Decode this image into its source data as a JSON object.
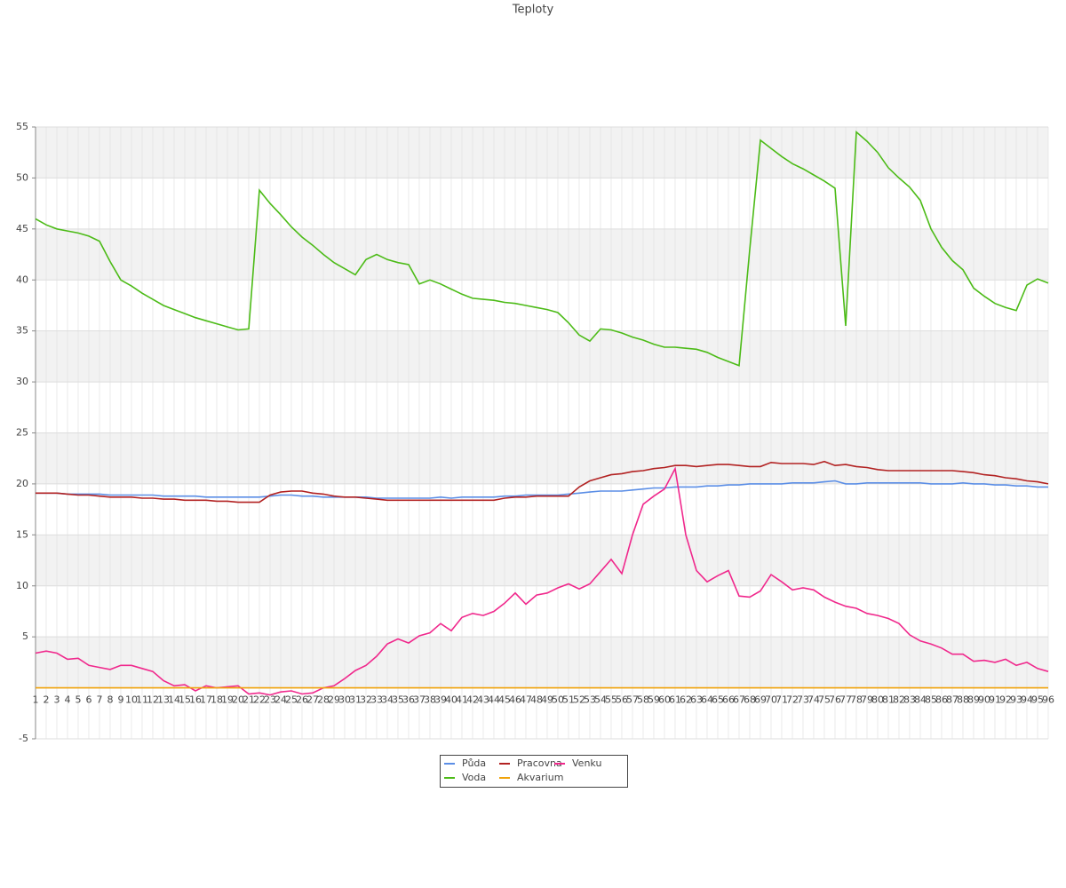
{
  "chart_data": {
    "type": "line",
    "title": "Teploty",
    "categories": [
      1,
      2,
      3,
      4,
      5,
      6,
      7,
      8,
      9,
      10,
      11,
      12,
      13,
      14,
      15,
      16,
      17,
      18,
      19,
      20,
      21,
      22,
      23,
      24,
      25,
      26,
      27,
      28,
      29,
      30,
      31,
      32,
      33,
      34,
      35,
      36,
      37,
      38,
      39,
      40,
      41,
      42,
      43,
      44,
      45,
      46,
      47,
      48,
      49,
      50,
      51,
      52,
      53,
      54,
      55,
      56,
      57,
      58,
      59,
      60,
      61,
      62,
      63,
      64,
      65,
      66,
      67,
      68,
      69,
      70,
      71,
      72,
      73,
      74,
      75,
      76,
      77,
      78,
      79,
      80,
      81,
      82,
      83,
      84,
      85,
      86,
      87,
      88,
      89,
      90,
      91,
      92,
      93,
      94,
      95,
      96
    ],
    "ylim": [
      -5,
      55
    ],
    "yticks": [
      -5,
      5,
      10,
      15,
      20,
      25,
      30,
      35,
      40,
      45,
      50,
      55
    ],
    "grid": true,
    "series": [
      {
        "name": "Půda",
        "color": "#5b8ee6",
        "values": [
          19.1,
          19.1,
          19.1,
          19.0,
          19.0,
          19.0,
          19.0,
          18.9,
          18.9,
          18.9,
          18.9,
          18.9,
          18.8,
          18.8,
          18.8,
          18.8,
          18.7,
          18.7,
          18.7,
          18.7,
          18.7,
          18.7,
          18.8,
          18.9,
          18.9,
          18.8,
          18.8,
          18.7,
          18.7,
          18.7,
          18.7,
          18.7,
          18.6,
          18.6,
          18.6,
          18.6,
          18.6,
          18.6,
          18.7,
          18.6,
          18.7,
          18.7,
          18.7,
          18.7,
          18.8,
          18.8,
          18.9,
          18.9,
          18.9,
          18.9,
          19.0,
          19.1,
          19.2,
          19.3,
          19.3,
          19.3,
          19.4,
          19.5,
          19.6,
          19.6,
          19.7,
          19.7,
          19.7,
          19.8,
          19.8,
          19.9,
          19.9,
          20.0,
          20.0,
          20.0,
          20.0,
          20.1,
          20.1,
          20.1,
          20.2,
          20.3,
          20.0,
          20.0,
          20.1,
          20.1,
          20.1,
          20.1,
          20.1,
          20.1,
          20.0,
          20.0,
          20.0,
          20.1,
          20.0,
          20.0,
          19.9,
          19.9,
          19.8,
          19.8,
          19.7,
          19.7
        ]
      },
      {
        "name": "Voda",
        "color": "#4cbb17",
        "values": [
          46,
          45.4,
          45,
          44.8,
          44.6,
          44.3,
          43.8,
          41.8,
          40,
          39.4,
          38.7,
          38.1,
          37.5,
          37.1,
          36.7,
          36.3,
          36,
          35.7,
          35.4,
          35.1,
          35.2,
          48.8,
          47.5,
          46.4,
          45.2,
          44.2,
          43.4,
          42.5,
          41.7,
          41.1,
          40.5,
          42,
          42.5,
          42,
          41.7,
          41.5,
          39.6,
          40,
          39.6,
          39.1,
          38.6,
          38.2,
          38.1,
          38,
          37.8,
          37.7,
          37.5,
          37.3,
          37.1,
          36.8,
          35.8,
          34.6,
          34,
          35.2,
          35.1,
          34.8,
          34.4,
          34.1,
          33.7,
          33.4,
          33.4,
          33.3,
          33.2,
          32.9,
          32.4,
          32,
          31.6,
          43,
          53.7,
          52.9,
          52.1,
          51.4,
          50.9,
          50.3,
          49.7,
          49,
          35.5,
          54.5,
          53.6,
          52.5,
          51,
          50,
          49.1,
          47.8,
          45,
          43.2,
          41.9,
          41,
          39.2,
          38.4,
          37.7,
          37.3,
          37,
          39.5,
          40.1,
          39.7
        ]
      },
      {
        "name": "Pracovna",
        "color": "#b22222",
        "values": [
          19.1,
          19.1,
          19.1,
          19.0,
          18.9,
          18.9,
          18.8,
          18.7,
          18.7,
          18.7,
          18.6,
          18.6,
          18.5,
          18.5,
          18.4,
          18.4,
          18.4,
          18.3,
          18.3,
          18.2,
          18.2,
          18.2,
          18.9,
          19.2,
          19.3,
          19.3,
          19.1,
          19.0,
          18.8,
          18.7,
          18.7,
          18.6,
          18.5,
          18.4,
          18.4,
          18.4,
          18.4,
          18.4,
          18.4,
          18.4,
          18.4,
          18.4,
          18.4,
          18.4,
          18.6,
          18.7,
          18.7,
          18.8,
          18.8,
          18.8,
          18.8,
          19.7,
          20.3,
          20.6,
          20.9,
          21.0,
          21.2,
          21.3,
          21.5,
          21.6,
          21.8,
          21.8,
          21.7,
          21.8,
          21.9,
          21.9,
          21.8,
          21.7,
          21.7,
          22.1,
          22.0,
          22.0,
          22.0,
          21.9,
          22.2,
          21.8,
          21.9,
          21.7,
          21.6,
          21.4,
          21.3,
          21.3,
          21.3,
          21.3,
          21.3,
          21.3,
          21.3,
          21.2,
          21.1,
          20.9,
          20.8,
          20.6,
          20.5,
          20.3,
          20.2,
          20.0
        ]
      },
      {
        "name": "Akvarium",
        "color": "#f0a30a",
        "values": [
          0,
          0,
          0,
          0,
          0,
          0,
          0,
          0,
          0,
          0,
          0,
          0,
          0,
          0,
          0,
          0,
          0,
          0,
          0,
          0,
          0,
          0,
          0,
          0,
          0,
          0,
          0,
          0,
          0,
          0,
          0,
          0,
          0,
          0,
          0,
          0,
          0,
          0,
          0,
          0,
          0,
          0,
          0,
          0,
          0,
          0,
          0,
          0,
          0,
          0,
          0,
          0,
          0,
          0,
          0,
          0,
          0,
          0,
          0,
          0,
          0,
          0,
          0,
          0,
          0,
          0,
          0,
          0,
          0,
          0,
          0,
          0,
          0,
          0,
          0,
          0,
          0,
          0,
          0,
          0,
          0,
          0,
          0,
          0,
          0,
          0,
          0,
          0,
          0,
          0,
          0,
          0,
          0,
          0,
          0,
          0
        ]
      },
      {
        "name": "Venku",
        "color": "#f0288c",
        "values": [
          3.4,
          3.6,
          3.4,
          2.8,
          2.9,
          2.2,
          2.0,
          1.8,
          2.2,
          2.2,
          1.9,
          1.6,
          0.7,
          0.2,
          0.3,
          -0.3,
          0.2,
          0,
          0.1,
          0.2,
          -0.6,
          -0.5,
          -0.7,
          -0.4,
          -0.3,
          -0.6,
          -0.5,
          0,
          0.2,
          0.9,
          1.7,
          2.2,
          3.1,
          4.3,
          4.8,
          4.4,
          5.1,
          5.4,
          6.3,
          5.6,
          6.9,
          7.3,
          7.1,
          7.5,
          8.3,
          9.3,
          8.2,
          9.1,
          9.3,
          9.8,
          10.2,
          9.7,
          10.2,
          11.4,
          12.6,
          11.2,
          15,
          18,
          18.8,
          19.5,
          21.5,
          15,
          11.5,
          10.4,
          11,
          11.5,
          9,
          8.9,
          9.5,
          11.1,
          10.4,
          9.6,
          9.8,
          9.6,
          8.9,
          8.4,
          8.0,
          7.8,
          7.3,
          7.1,
          6.8,
          6.3,
          5.2,
          4.6,
          4.3,
          3.9,
          3.3,
          3.3,
          2.6,
          2.7,
          2.5,
          2.8,
          2.2,
          2.5,
          1.9,
          1.6
        ]
      }
    ]
  }
}
